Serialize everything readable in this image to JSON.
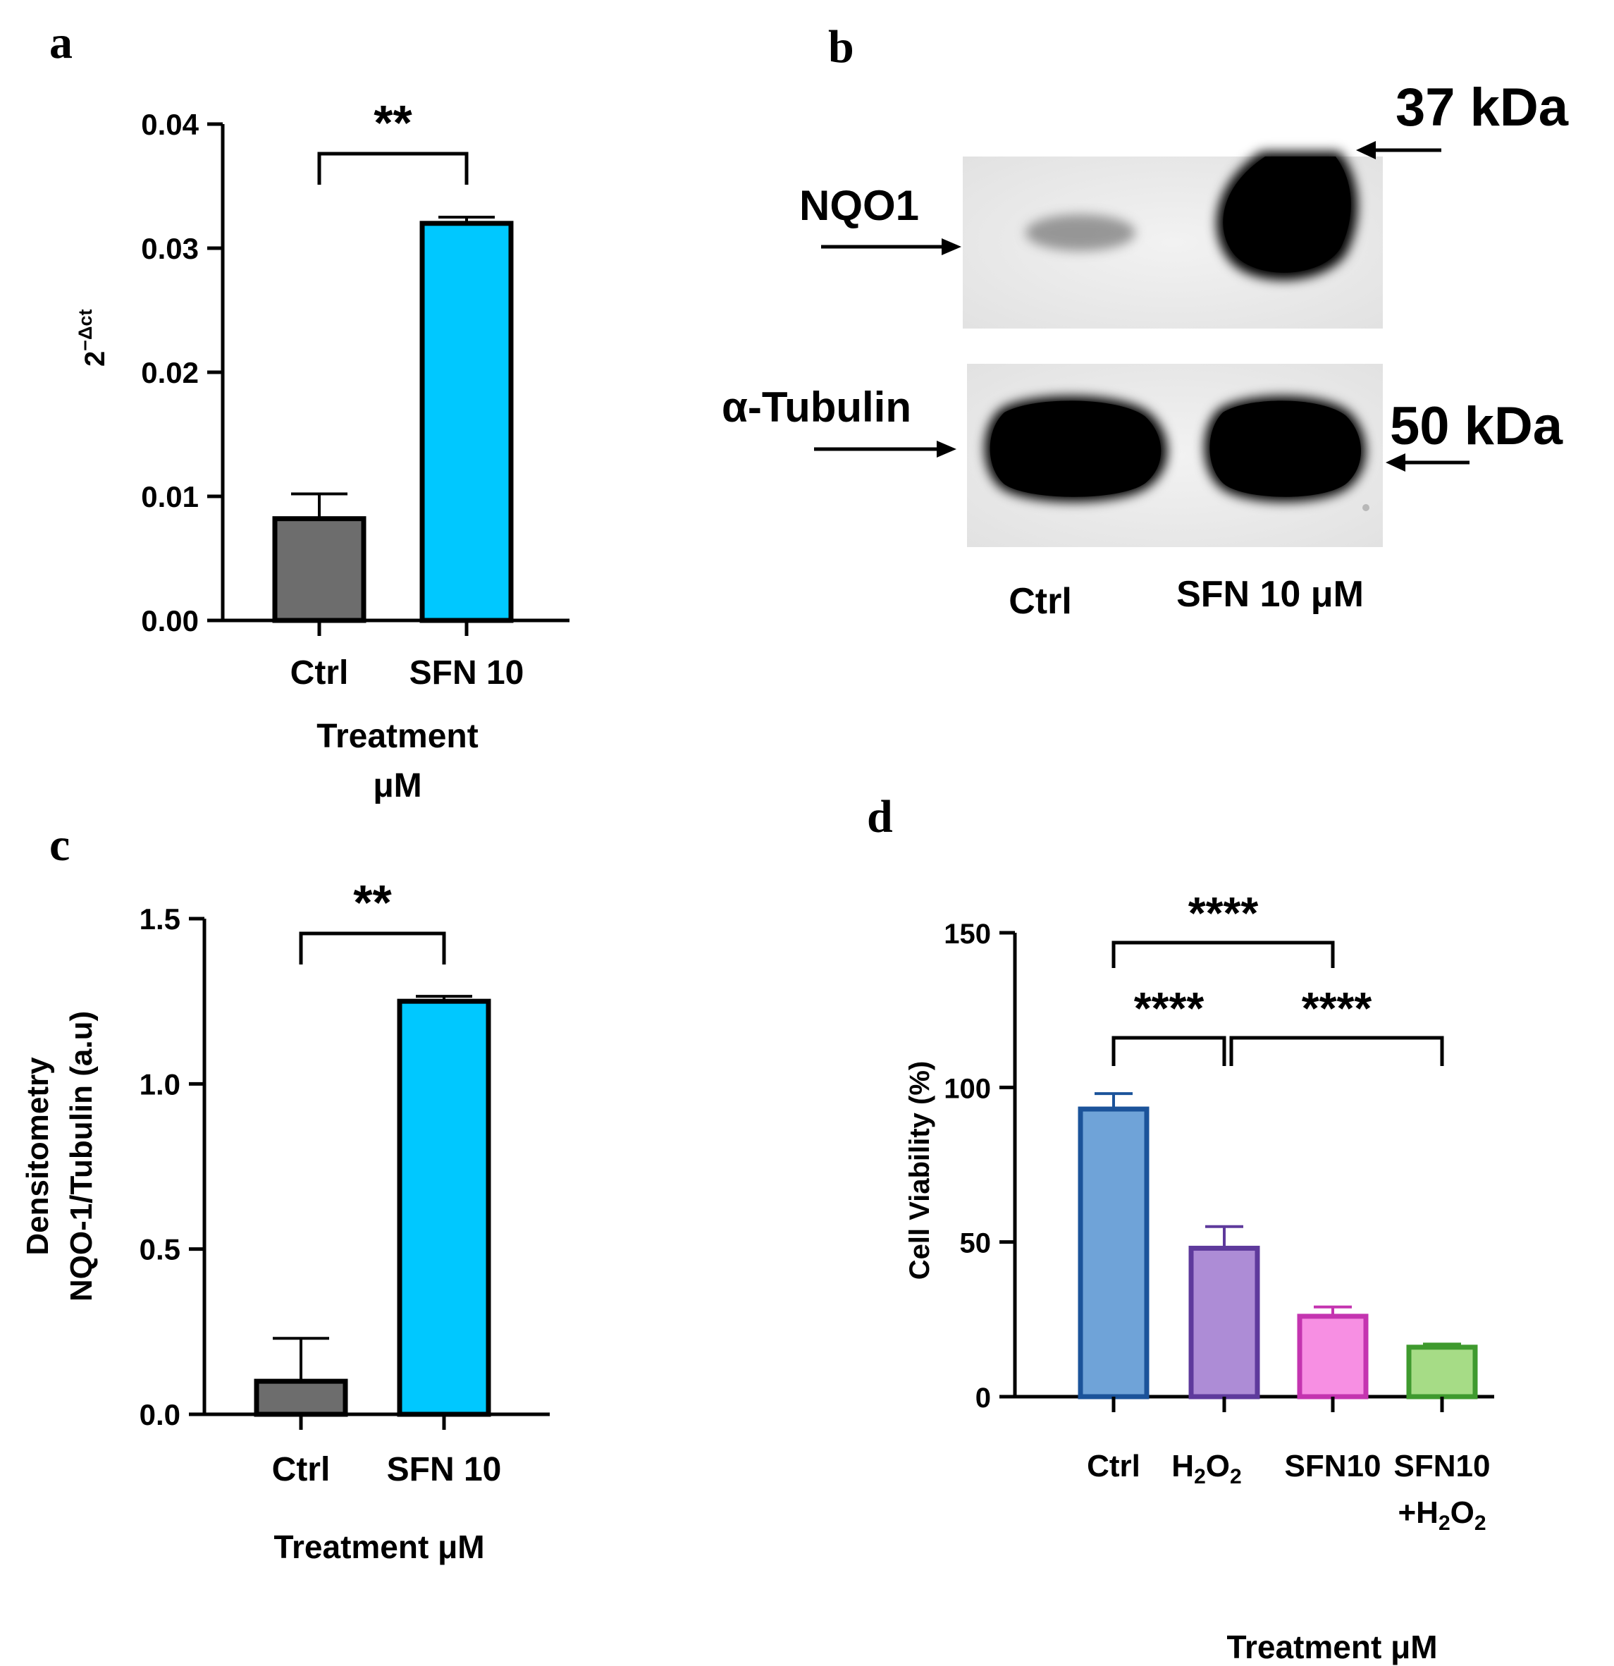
{
  "panels": {
    "a": "a",
    "b": "b",
    "c": "c",
    "d": "d"
  },
  "chart_data": [
    {
      "id": "a",
      "type": "bar",
      "categories": [
        "Ctrl",
        "SFN 10"
      ],
      "values": [
        0.0082,
        0.032
      ],
      "errors": [
        0.002,
        0.0005
      ],
      "bar_colors": [
        "#6d6d6d",
        "#00c8ff"
      ],
      "ylabel": "2",
      "ylabel_sup": "−Δct",
      "xlabel_line1": "Treatment",
      "xlabel_line2": "μM",
      "ylim": [
        0,
        0.04
      ],
      "yticks": [
        "0.00",
        "0.01",
        "0.02",
        "0.03",
        "0.04"
      ],
      "ytick_values": [
        0,
        0.01,
        0.02,
        0.03,
        0.04
      ],
      "significance": [
        {
          "from": 0,
          "to": 1,
          "label": "**"
        }
      ]
    },
    {
      "id": "b",
      "type": "blot",
      "proteins": [
        {
          "name": "NQO1",
          "marker": "37 kDa"
        },
        {
          "name": "α-Tubulin",
          "marker": "50 kDa"
        }
      ],
      "lanes": [
        "Ctrl",
        "SFN 10 μM"
      ]
    },
    {
      "id": "c",
      "type": "bar",
      "categories": [
        "Ctrl",
        "SFN 10"
      ],
      "values": [
        0.1,
        1.25
      ],
      "errors": [
        0.13,
        0.015
      ],
      "bar_colors": [
        "#6d6d6d",
        "#00c8ff"
      ],
      "ylabel_line1": "Densitometry",
      "ylabel_line2": "NQO-1/Tubulin (a.u)",
      "xlabel": "Treatment μM",
      "ylim": [
        0,
        1.5
      ],
      "yticks": [
        "0.0",
        "0.5",
        "1.0",
        "1.5"
      ],
      "ytick_values": [
        0,
        0.5,
        1.0,
        1.5
      ],
      "significance": [
        {
          "from": 0,
          "to": 1,
          "label": "**"
        }
      ]
    },
    {
      "id": "d",
      "type": "bar",
      "categories": [
        "Ctrl",
        "H2O2",
        "SFN10",
        "SFN10 +H2O2"
      ],
      "values": [
        93,
        48,
        26,
        16
      ],
      "errors": [
        5,
        7,
        3,
        1
      ],
      "bar_colors": [
        "#6fa3d8",
        "#ad8cd6",
        "#f78fe3",
        "#a6dc86"
      ],
      "edge_colors": [
        "#1b539a",
        "#5e3a9c",
        "#c434b0",
        "#3f9a2e"
      ],
      "ylabel": "Cell Viability (%)",
      "xlabel": "Treatment μM",
      "ylim": [
        0,
        150
      ],
      "yticks": [
        "0",
        "50",
        "100",
        "150"
      ],
      "ytick_values": [
        0,
        50,
        100,
        150
      ],
      "significance": [
        {
          "from": 0,
          "to": 2,
          "label": "****"
        },
        {
          "from": 0,
          "to": 1,
          "label": "****"
        },
        {
          "from": 1,
          "to": 3,
          "label": "****"
        }
      ]
    }
  ]
}
